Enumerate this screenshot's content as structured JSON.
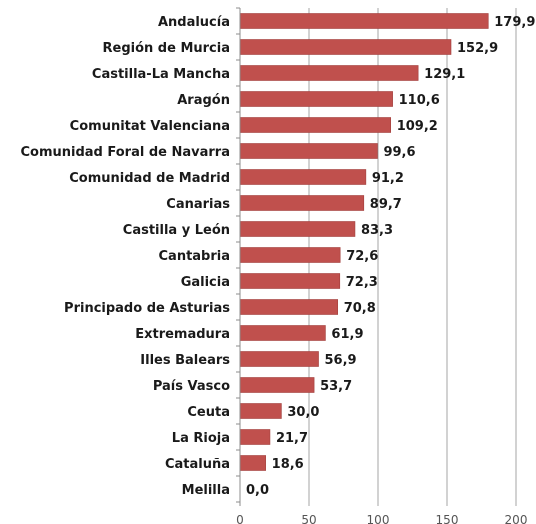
{
  "chart_data": {
    "type": "bar",
    "orientation": "horizontal",
    "title": "",
    "xlabel": "",
    "ylabel": "",
    "categories": [
      "Andalucía",
      "Región de Murcia",
      "Castilla-La Mancha",
      "Aragón",
      "Comunitat Valenciana",
      "Comunidad Foral de Navarra",
      "Comunidad de Madrid",
      "Canarias",
      "Castilla y León",
      "Cantabria",
      "Galicia",
      "Principado de Asturias",
      "Extremadura",
      "Illes Balears",
      "País Vasco",
      "Ceuta",
      "La Rioja",
      "Cataluña",
      "Melilla"
    ],
    "values": [
      179.9,
      152.9,
      129.1,
      110.6,
      109.2,
      99.6,
      91.2,
      89.7,
      83.3,
      72.6,
      72.3,
      70.8,
      61.9,
      56.9,
      53.7,
      30.0,
      21.7,
      18.6,
      0.0
    ],
    "value_labels": [
      "179,9",
      "152,9",
      "129,1",
      "110,6",
      "109,2",
      "99,6",
      "91,2",
      "89,7",
      "83,3",
      "72,6",
      "72,3",
      "70,8",
      "61,9",
      "56,9",
      "53,7",
      "30,0",
      "21,7",
      "18,6",
      "0,0"
    ],
    "xlim": [
      0,
      200
    ],
    "x_ticks": [
      0,
      50,
      100,
      150,
      200
    ],
    "x_tick_labels": [
      "0",
      "50",
      "100",
      "150",
      "200"
    ],
    "grid": "vertical",
    "legend": "none",
    "colors": {
      "bar": "#c0504d",
      "bar_edge": "#a13f3c",
      "grid": "#a6a6a6",
      "axis": "#8c8c8c"
    }
  }
}
